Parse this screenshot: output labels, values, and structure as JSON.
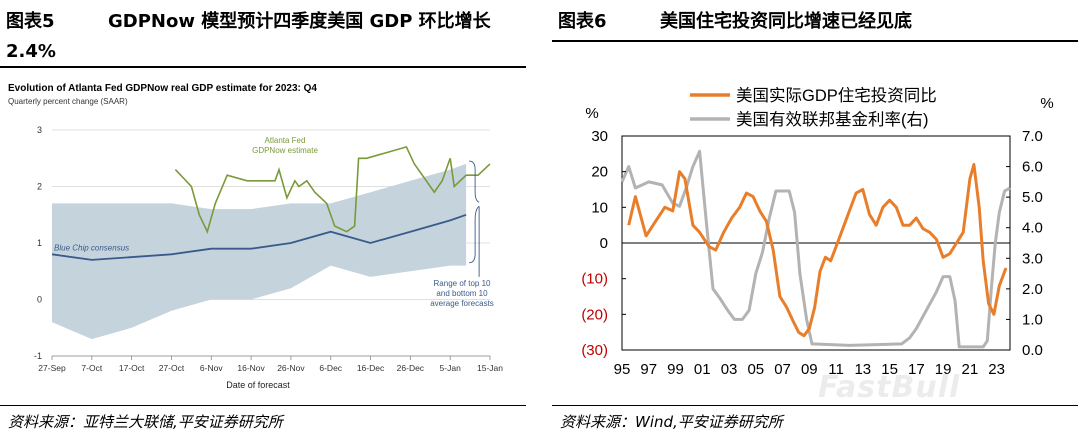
{
  "left": {
    "fig_label": "图表5",
    "title_line1": "GDPNow 模型预计四季度美国 GDP 环比增长",
    "title_line2": "2.4%",
    "source": "资料来源：亚特兰大联储,平安证券研究所"
  },
  "right": {
    "fig_label": "图表6",
    "title": "美国住宅投资同比增速已经见底",
    "source": "资料来源：Wind,平安证券研究所"
  },
  "watermark": "FastBull",
  "chart_data": [
    {
      "type": "line",
      "title": "Evolution of Atlanta Fed GDPNow real GDP estimate for 2023: Q4",
      "subtitle": "Quarterly percent change (SAAR)",
      "xlabel": "Date of forecast",
      "x_tick_labels": [
        "27-Sep",
        "7-Oct",
        "17-Oct",
        "27-Oct",
        "6-Nov",
        "16-Nov",
        "26-Nov",
        "6-Dec",
        "16-Dec",
        "26-Dec",
        "5-Jan",
        "15-Jan"
      ],
      "y_tick_labels": [
        "3",
        "2",
        "1",
        "0",
        "-1"
      ],
      "ylim": [
        -1,
        3
      ],
      "xlim_days": [
        0,
        110
      ],
      "grid": "horizontal",
      "annotations": {
        "gdpnow": "Atlanta Fed\nGDPNow estimate",
        "bluechip": "Blue Chip consensus",
        "range": "Range of top 10\nand bottom 10\naverage forecasts"
      },
      "colors": {
        "gdpnow": "#7a9a3a",
        "bluechip": "#3a5a8c",
        "band": "#c5d3dc"
      },
      "series": [
        {
          "name": "GDPNow",
          "x_days": [
            31,
            35,
            37,
            39,
            41,
            44,
            49,
            54,
            56,
            57,
            59,
            61,
            62,
            64,
            66,
            69,
            71,
            74,
            76,
            77,
            79,
            84,
            89,
            91,
            94,
            96,
            97,
            98,
            100,
            101,
            104,
            107,
            110
          ],
          "values": [
            2.3,
            2.0,
            1.5,
            1.2,
            1.7,
            2.2,
            2.1,
            2.1,
            2.1,
            2.3,
            1.8,
            2.1,
            2.0,
            2.1,
            1.9,
            1.7,
            1.3,
            1.2,
            1.3,
            2.5,
            2.5,
            2.6,
            2.7,
            2.4,
            2.1,
            1.9,
            2.0,
            2.1,
            2.5,
            2.0,
            2.2,
            2.2,
            2.4
          ]
        },
        {
          "name": "Blue Chip consensus",
          "x_days": [
            0,
            10,
            30,
            40,
            50,
            60,
            70,
            80,
            90,
            100,
            104
          ],
          "values": [
            0.8,
            0.7,
            0.8,
            0.9,
            0.9,
            1.0,
            1.2,
            1.0,
            1.2,
            1.4,
            1.5
          ]
        },
        {
          "name": "Range upper",
          "x_days": [
            0,
            30,
            40,
            50,
            60,
            70,
            80,
            90,
            100,
            104
          ],
          "values": [
            1.7,
            1.7,
            1.6,
            1.6,
            1.7,
            1.7,
            1.9,
            2.1,
            2.3,
            2.4
          ]
        },
        {
          "name": "Range lower",
          "x_days": [
            0,
            10,
            20,
            30,
            40,
            50,
            60,
            70,
            80,
            90,
            100,
            104
          ],
          "values": [
            -0.4,
            -0.7,
            -0.5,
            -0.2,
            0.0,
            0.0,
            0.2,
            0.6,
            0.4,
            0.5,
            0.6,
            0.6
          ]
        }
      ]
    },
    {
      "type": "line",
      "x_tick_labels": [
        "95",
        "97",
        "99",
        "01",
        "03",
        "05",
        "07",
        "09",
        "11",
        "13",
        "15",
        "17",
        "19",
        "21",
        "23"
      ],
      "y_left_unit": "%",
      "y_right_unit": "%",
      "y_left_tick_labels": [
        "30",
        "20",
        "10",
        "0",
        "(10)",
        "(20)",
        "(30)"
      ],
      "y_right_tick_labels": [
        "7.0",
        "6.0",
        "5.0",
        "4.0",
        "3.0",
        "2.0",
        "1.0",
        "0.0"
      ],
      "ylim_left": [
        -30,
        30
      ],
      "ylim_right": [
        0,
        7
      ],
      "xlim": [
        1995,
        2024
      ],
      "colors": {
        "residential": "#e97e2a",
        "fedfunds": "#b3b3b3",
        "negative_tick": "#c00000"
      },
      "series": [
        {
          "name": "美国实际GDP住宅投资同比",
          "axis": "left",
          "x": [
            1995.5,
            1996.0,
            1996.8,
            1997.5,
            1998.2,
            1998.8,
            1999.3,
            1999.7,
            2000.3,
            2000.8,
            2001.5,
            2002.0,
            2002.6,
            2003.2,
            2003.8,
            2004.3,
            2004.8,
            2005.3,
            2005.8,
            2006.3,
            2006.8,
            2007.3,
            2007.8,
            2008.2,
            2008.6,
            2009.0,
            2009.4,
            2009.8,
            2010.2,
            2010.6,
            2011.0,
            2011.5,
            2012.0,
            2012.5,
            2013.0,
            2013.5,
            2014.0,
            2014.5,
            2015.0,
            2015.5,
            2016.0,
            2016.5,
            2017.0,
            2017.5,
            2018.0,
            2018.5,
            2019.0,
            2019.5,
            2020.0,
            2020.5,
            2021.0,
            2021.3,
            2021.7,
            2022.0,
            2022.4,
            2022.8,
            2023.2,
            2023.7
          ],
          "values": [
            5,
            13,
            2,
            6,
            10,
            9,
            20,
            18,
            5,
            3,
            -1,
            -2,
            3,
            7,
            10,
            14,
            13,
            9,
            6,
            -2,
            -15,
            -18,
            -22,
            -25,
            -26,
            -24,
            -18,
            -8,
            -4,
            -5,
            -1,
            4,
            9,
            14,
            15,
            8,
            5,
            10,
            12,
            10,
            5,
            5,
            7,
            4,
            3,
            1,
            -4,
            -3,
            0,
            3,
            18,
            22,
            10,
            -5,
            -17,
            -20,
            -12,
            -7
          ]
        },
        {
          "name": "美国有效联邦基金利率(右)",
          "axis": "right",
          "x": [
            1995.0,
            1995.5,
            1996.0,
            1997.0,
            1998.0,
            1998.8,
            1999.3,
            1999.8,
            2000.3,
            2000.8,
            2001.3,
            2001.8,
            2002.3,
            2002.9,
            2003.4,
            2004.0,
            2004.5,
            2005.0,
            2005.5,
            2006.0,
            2006.5,
            2007.0,
            2007.5,
            2007.9,
            2008.3,
            2008.8,
            2009.2,
            2012.0,
            2015.9,
            2016.5,
            2017.0,
            2017.5,
            2018.0,
            2018.5,
            2019.0,
            2019.5,
            2019.9,
            2020.2,
            2020.6,
            2022.0,
            2022.3,
            2022.6,
            2022.9,
            2023.2,
            2023.6,
            2024.0
          ],
          "values": [
            5.5,
            6.0,
            5.3,
            5.5,
            5.4,
            4.8,
            4.7,
            5.3,
            6.0,
            6.5,
            4.2,
            2.0,
            1.7,
            1.3,
            1.0,
            1.0,
            1.3,
            2.5,
            3.2,
            4.3,
            5.2,
            5.2,
            5.2,
            4.5,
            2.5,
            1.0,
            0.2,
            0.15,
            0.2,
            0.4,
            0.7,
            1.1,
            1.5,
            1.9,
            2.4,
            2.4,
            1.6,
            0.1,
            0.1,
            0.1,
            0.3,
            2.0,
            3.5,
            4.5,
            5.2,
            5.3
          ]
        }
      ]
    }
  ]
}
